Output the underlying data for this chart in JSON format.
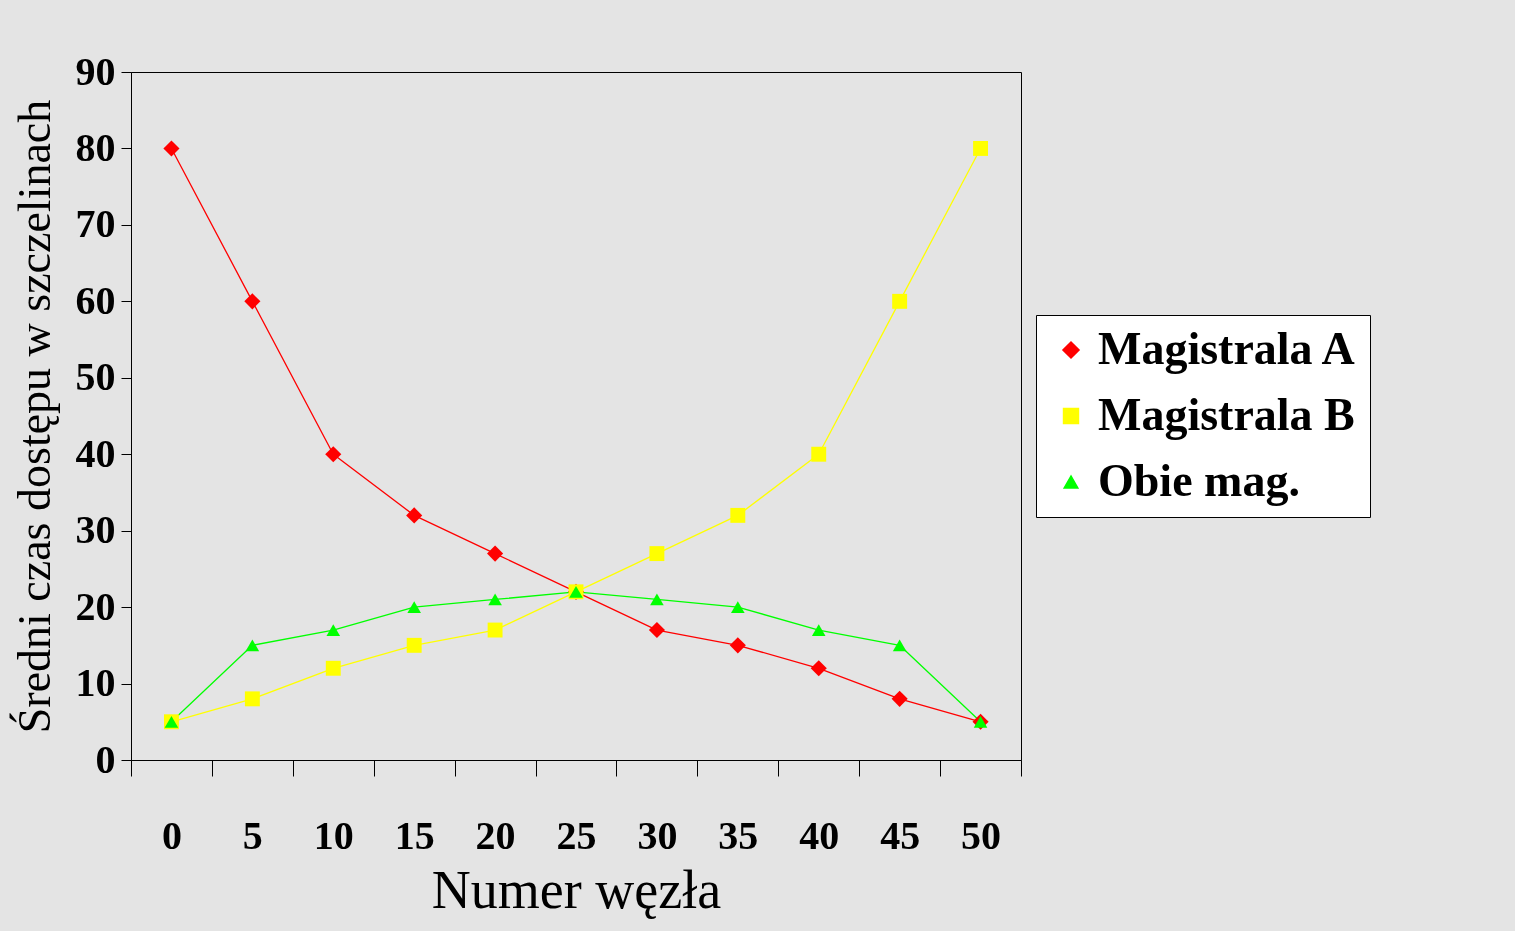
{
  "chart_data": {
    "type": "line",
    "xlabel": "Numer węzła",
    "ylabel": "Średni czas dostępu w szczelinach",
    "categories": [
      "0",
      "5",
      "10",
      "15",
      "20",
      "25",
      "30",
      "35",
      "40",
      "45",
      "50"
    ],
    "series": [
      {
        "name": "Magistrala A",
        "color": "#ff0000",
        "marker": "diamond",
        "values": [
          80,
          60,
          40,
          32,
          27,
          22,
          17,
          15,
          12,
          8,
          5
        ]
      },
      {
        "name": "Magistrala B",
        "color": "#ffff00",
        "marker": "square",
        "values": [
          5,
          8,
          12,
          15,
          17,
          22,
          27,
          32,
          40,
          60,
          80
        ]
      },
      {
        "name": "Obie mag.",
        "color": "#00ff00",
        "marker": "triangle",
        "values": [
          5,
          15,
          17,
          20,
          21,
          22,
          21,
          20,
          17,
          15,
          5
        ]
      }
    ],
    "ylim": [
      0,
      90
    ],
    "yticks": [
      0,
      10,
      20,
      30,
      40,
      50,
      60,
      70,
      80,
      90
    ],
    "grid": false,
    "legend": "right"
  }
}
